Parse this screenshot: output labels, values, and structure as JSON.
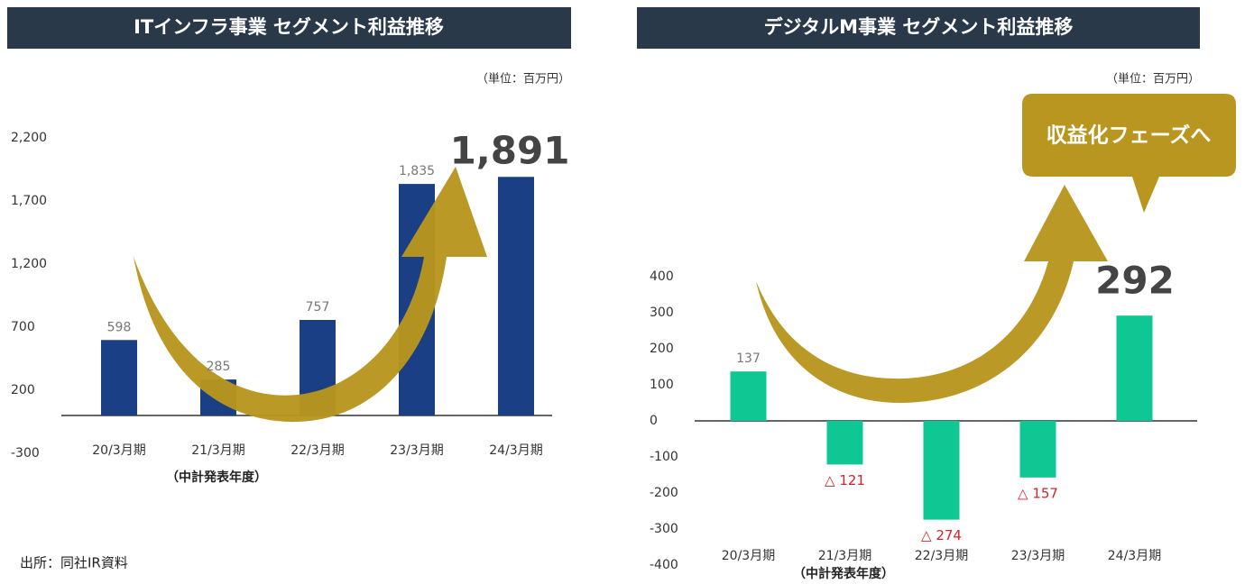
{
  "chart_data": [
    {
      "type": "bar",
      "title": "ITインフラ事業 セグメント利益推移",
      "unit": "（単位：百万円）",
      "categories": [
        "20/3月期",
        "21/3月期",
        "22/3月期",
        "23/3月期",
        "24/3月期"
      ],
      "values": [
        598,
        285,
        757,
        1835,
        1891
      ],
      "value_labels": [
        "598",
        "285",
        "757",
        "1,835",
        "1,891"
      ],
      "color": "#1b3f85",
      "ylim": [
        -300,
        2200
      ],
      "yticks": [
        -300,
        200,
        700,
        {
          "value": 1200,
          "label": "1,200"
        },
        {
          "value": 1700,
          "label": "1,700"
        },
        {
          "value": 2200,
          "label": "2,200"
        }
      ],
      "subtitle": "（中計発表年度）"
    },
    {
      "type": "bar",
      "title": "デジタルM事業 セグメント利益推移",
      "unit": "（単位：百万円）",
      "categories": [
        "20/3月期",
        "21/3月期",
        "22/3月期",
        "23/3月期",
        "24/3月期"
      ],
      "values": [
        137,
        -121,
        -274,
        -157,
        292
      ],
      "value_labels": [
        "137",
        "△ 121",
        "△ 274",
        "△ 157",
        "292"
      ],
      "color": "#0fc793",
      "ylim": [
        -400,
        400
      ],
      "yticks": [
        -400,
        -300,
        -200,
        -100,
        0,
        100,
        200,
        300,
        400
      ],
      "subtitle": "（中計発表年度）",
      "annotation": "収益化フェーズへ"
    }
  ],
  "source": "出所：同社IR資料"
}
